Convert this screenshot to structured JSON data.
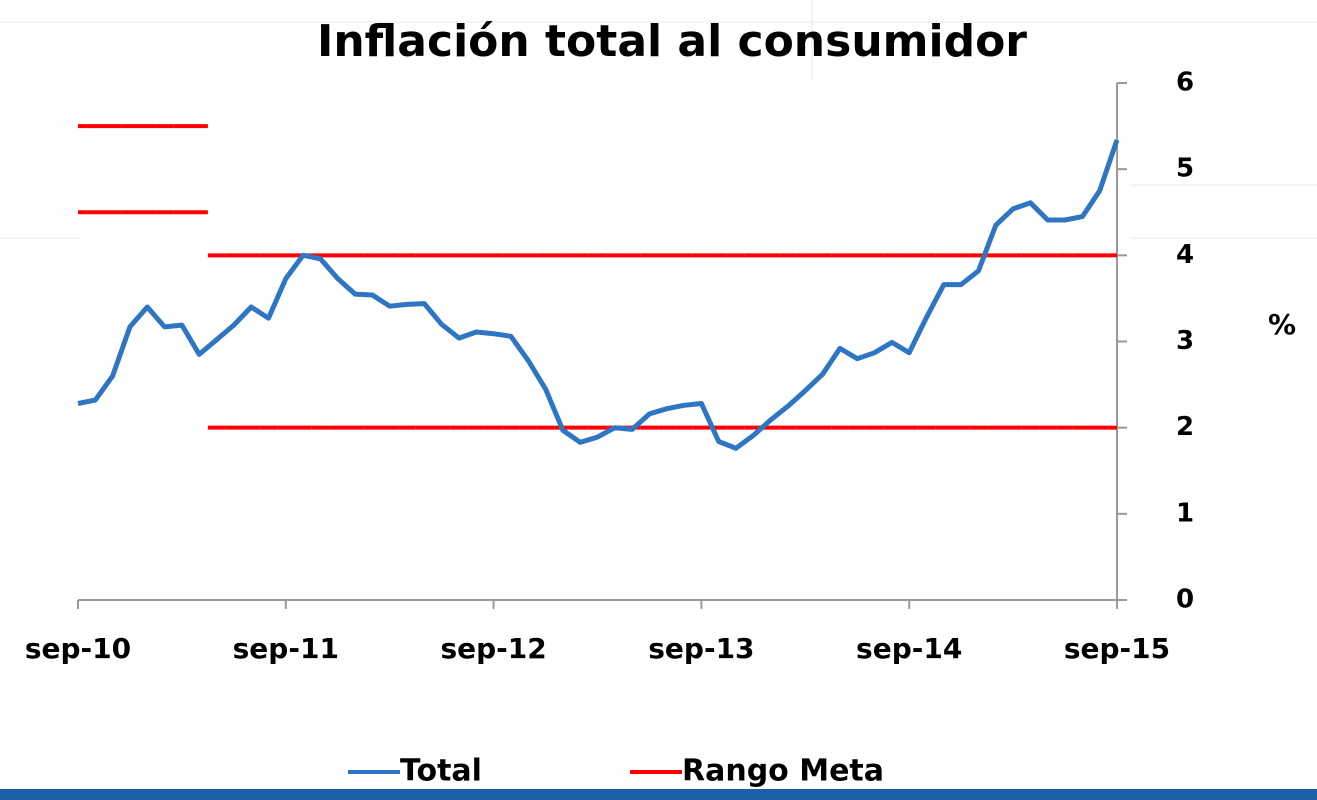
{
  "chart_data": {
    "type": "line",
    "title": "Inflación total al consumidor",
    "y_axis_label": "%",
    "categories": [
      "sep-10",
      null,
      null,
      null,
      null,
      null,
      null,
      null,
      null,
      null,
      null,
      null,
      "sep-11",
      null,
      null,
      null,
      null,
      null,
      null,
      null,
      null,
      null,
      null,
      null,
      "sep-12",
      null,
      null,
      null,
      null,
      null,
      null,
      null,
      null,
      null,
      null,
      null,
      "sep-13",
      null,
      null,
      null,
      null,
      null,
      null,
      null,
      null,
      null,
      null,
      null,
      "sep-14",
      null,
      null,
      null,
      null,
      null,
      null,
      null,
      null,
      null,
      null,
      null,
      "sep-15"
    ],
    "ylim": [
      0,
      6
    ],
    "yticks": [
      0,
      1,
      2,
      3,
      4,
      5,
      6
    ],
    "legend": "bottom",
    "series": [
      {
        "name": "Total",
        "color": "#2e75c4",
        "values": [
          2.28,
          2.32,
          2.6,
          3.17,
          3.4,
          3.17,
          3.19,
          2.85,
          3.02,
          3.19,
          3.4,
          3.27,
          3.73,
          4.0,
          3.96,
          3.73,
          3.55,
          3.54,
          3.41,
          3.43,
          3.44,
          3.2,
          3.04,
          3.11,
          3.09,
          3.06,
          2.78,
          2.45,
          1.97,
          1.83,
          1.89,
          2.0,
          1.98,
          2.16,
          2.22,
          2.26,
          2.28,
          1.84,
          1.76,
          1.91,
          2.09,
          2.25,
          2.43,
          2.62,
          2.92,
          2.8,
          2.87,
          2.99,
          2.87,
          3.28,
          3.66,
          3.66,
          3.82,
          4.35,
          4.54,
          4.61,
          4.41,
          4.41,
          4.45,
          4.75,
          5.34
        ]
      },
      {
        "name": "Rango Meta",
        "color": "#ff0000",
        "upper": [
          5.5,
          5.5,
          5.5,
          5.5,
          5.5,
          5.5,
          5.5,
          5.5,
          4,
          4,
          4,
          4,
          4,
          4,
          4,
          4,
          4,
          4,
          4,
          4,
          4,
          4,
          4,
          4,
          4,
          4,
          4,
          4,
          4,
          4,
          4,
          4,
          4,
          4,
          4,
          4,
          4,
          4,
          4,
          4,
          4,
          4,
          4,
          4,
          4,
          4,
          4,
          4,
          4,
          4,
          4,
          4,
          4,
          4,
          4,
          4,
          4,
          4,
          4,
          4,
          4
        ],
        "lower": [
          4.5,
          4.5,
          4.5,
          4.5,
          4.5,
          4.5,
          4.5,
          4.5,
          2,
          2,
          2,
          2,
          2,
          2,
          2,
          2,
          2,
          2,
          2,
          2,
          2,
          2,
          2,
          2,
          2,
          2,
          2,
          2,
          2,
          2,
          2,
          2,
          2,
          2,
          2,
          2,
          2,
          2,
          2,
          2,
          2,
          2,
          2,
          2,
          2,
          2,
          2,
          2,
          2,
          2,
          2,
          2,
          2,
          2,
          2,
          2,
          2,
          2,
          2,
          2,
          2
        ]
      }
    ]
  }
}
